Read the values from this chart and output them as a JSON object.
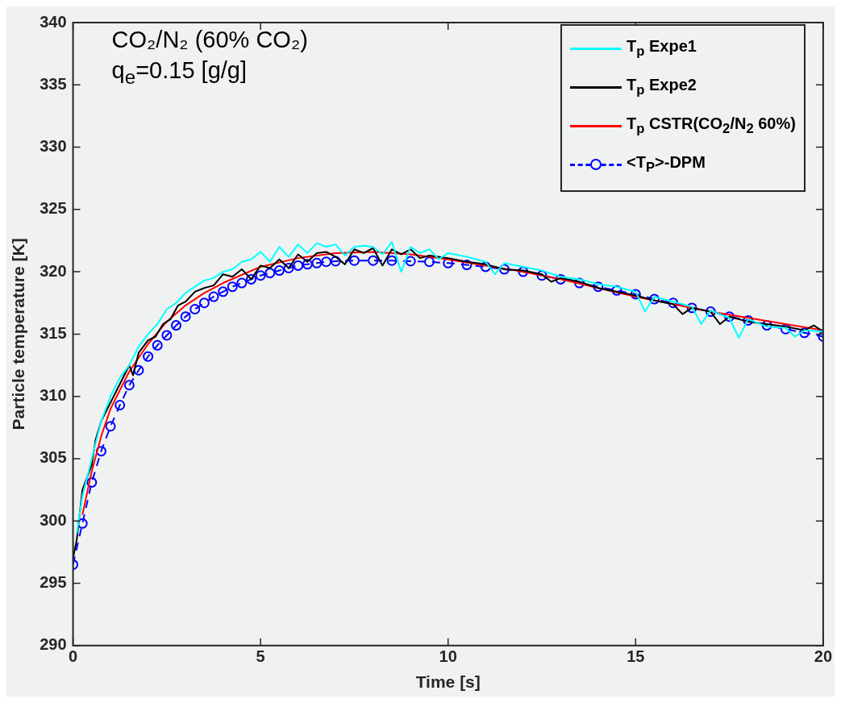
{
  "chart_data": {
    "type": "line",
    "xlabel": "Time [s]",
    "ylabel": "Particle temperature [K]",
    "xlim": [
      0,
      20
    ],
    "xticks": [
      0,
      5,
      10,
      15,
      20
    ],
    "ylim": [
      290,
      340
    ],
    "yticks": [
      290,
      295,
      300,
      305,
      310,
      315,
      320,
      325,
      330,
      335,
      340
    ],
    "grid": false,
    "legend": "top right",
    "annotations": [
      "CO₂/N₂ (60% CO₂)",
      "q$_{e}$=0.15 [g/g]"
    ],
    "series": [
      {
        "name": "T$_{p}$ Expe1",
        "color": "#00ffff",
        "marker": "none",
        "line_style": "solid",
        "x": [
          0.1,
          0.25,
          0.5,
          0.75,
          1,
          1.25,
          1.5,
          1.75,
          2,
          2.25,
          2.5,
          2.75,
          3,
          3.25,
          3.5,
          3.75,
          4,
          4.25,
          4.5,
          4.75,
          5,
          5.25,
          5.5,
          5.75,
          6,
          6.25,
          6.5,
          6.75,
          7,
          7.25,
          7.5,
          7.75,
          8,
          8.25,
          8.5,
          8.75,
          9,
          9.25,
          9.5,
          9.75,
          10,
          10.5,
          11,
          11.25,
          11.5,
          12,
          12.5,
          13,
          13.5,
          14,
          14.5,
          15,
          15.25,
          15.5,
          16,
          16.5,
          16.75,
          17,
          17.5,
          17.75,
          18,
          18.5,
          19,
          19.25,
          19.5,
          20
        ],
        "values": [
          299,
          302,
          305,
          308,
          310,
          311.5,
          312.5,
          314,
          315,
          315.8,
          317,
          317.5,
          318.3,
          318.8,
          319.3,
          319.5,
          320,
          320.2,
          320.8,
          321,
          321.6,
          320.8,
          322,
          321.2,
          322.2,
          321.5,
          322.3,
          322,
          322.2,
          321.3,
          322,
          322.1,
          322,
          321.4,
          322.4,
          320,
          322,
          321.5,
          321.8,
          321,
          321.5,
          321.2,
          320.8,
          319.8,
          320.7,
          320.4,
          320.1,
          319.6,
          319.4,
          319,
          318.8,
          318.4,
          316.8,
          318,
          317.6,
          317.2,
          315.8,
          316.9,
          316.3,
          314.7,
          316.2,
          315.6,
          315.5,
          314.8,
          315.3,
          315.2
        ]
      },
      {
        "name": "T$_{p}$ Expe2",
        "color": "#000000",
        "marker": "none",
        "line_style": "solid",
        "x": [
          0,
          0.1,
          0.25,
          0.5,
          0.6,
          0.75,
          1,
          1.25,
          1.5,
          1.6,
          1.75,
          2,
          2.2,
          2.4,
          2.6,
          2.8,
          3,
          3.25,
          3.5,
          3.75,
          4,
          4.25,
          4.5,
          4.75,
          5,
          5.25,
          5.5,
          5.75,
          6,
          6.25,
          6.5,
          6.75,
          7,
          7.25,
          7.5,
          7.75,
          8,
          8.25,
          8.5,
          8.75,
          9,
          9.25,
          9.5,
          10,
          10.5,
          11,
          11.5,
          12,
          12.5,
          12.75,
          13,
          13.5,
          14,
          14.5,
          15,
          15.5,
          16,
          16.25,
          16.5,
          17,
          17.25,
          17.5,
          18,
          18.5,
          19,
          19.5,
          19.75,
          20
        ],
        "values": [
          297,
          298.5,
          302.5,
          304.5,
          306.5,
          308,
          309.5,
          311,
          312.5,
          311.7,
          313.5,
          314.5,
          314.8,
          315.8,
          316.2,
          317.3,
          317.6,
          318.4,
          318.7,
          318.9,
          319.8,
          319.6,
          320.2,
          319.4,
          320.5,
          320.3,
          321,
          320.3,
          321.4,
          320.8,
          321.5,
          321.6,
          321.2,
          320.6,
          321.8,
          321.5,
          321.9,
          320.5,
          321.8,
          321.4,
          321.8,
          321.1,
          321.3,
          321.1,
          320.8,
          320.6,
          320.2,
          320.1,
          319.8,
          319.2,
          319.5,
          319.2,
          318.7,
          318.4,
          318.1,
          317.7,
          317.4,
          316.6,
          317.1,
          316.8,
          315.8,
          316.4,
          316,
          315.8,
          315.6,
          315.3,
          315.7,
          315.2
        ]
      },
      {
        "name": "T$_{p}$ CSTR(CO$_{2}$/N$_{2}$ 60%)",
        "color": "#ff0000",
        "marker": "none",
        "line_style": "solid",
        "x": [
          0.25,
          0.5,
          0.75,
          1,
          1.5,
          2,
          2.5,
          3,
          3.5,
          4,
          5,
          6,
          7,
          8,
          9,
          10,
          11,
          12,
          13,
          14,
          15,
          16,
          17,
          18,
          19,
          20
        ],
        "values": [
          300.5,
          304,
          306.8,
          309,
          312,
          314.2,
          316,
          317.3,
          318.3,
          319.1,
          320.4,
          321.1,
          321.5,
          321.6,
          321.4,
          321,
          320.5,
          320,
          319.4,
          318.7,
          318,
          317.4,
          316.8,
          316.3,
          315.8,
          315.3
        ]
      },
      {
        "name": "<T$_{P}$>-DPM",
        "color": "#0000ff",
        "marker": "circle",
        "line_style": "dashed",
        "x": [
          0,
          0.25,
          0.5,
          0.75,
          1,
          1.25,
          1.5,
          1.75,
          2,
          2.25,
          2.5,
          2.75,
          3,
          3.25,
          3.5,
          3.75,
          4,
          4.25,
          4.5,
          4.75,
          5,
          5.25,
          5.5,
          5.75,
          6,
          6.25,
          6.5,
          6.75,
          7,
          7.5,
          8,
          8.5,
          9,
          9.5,
          10,
          10.5,
          11,
          11.5,
          12,
          12.5,
          13,
          13.5,
          14,
          14.5,
          15,
          15.5,
          16,
          16.5,
          17,
          17.5,
          18,
          18.5,
          19,
          19.5,
          20
        ],
        "values": [
          296.5,
          299.8,
          303.1,
          305.6,
          307.6,
          309.3,
          310.9,
          312.1,
          313.2,
          314.1,
          314.9,
          315.7,
          316.4,
          317,
          317.5,
          318,
          318.4,
          318.8,
          319.1,
          319.4,
          319.7,
          319.9,
          320.1,
          320.3,
          320.5,
          320.6,
          320.7,
          320.8,
          320.85,
          320.9,
          320.9,
          320.9,
          320.85,
          320.8,
          320.7,
          320.55,
          320.4,
          320.2,
          320,
          319.7,
          319.4,
          319.1,
          318.8,
          318.5,
          318.2,
          317.8,
          317.5,
          317.1,
          316.8,
          316.4,
          316.1,
          315.7,
          315.4,
          315.1,
          314.8
        ]
      }
    ]
  }
}
